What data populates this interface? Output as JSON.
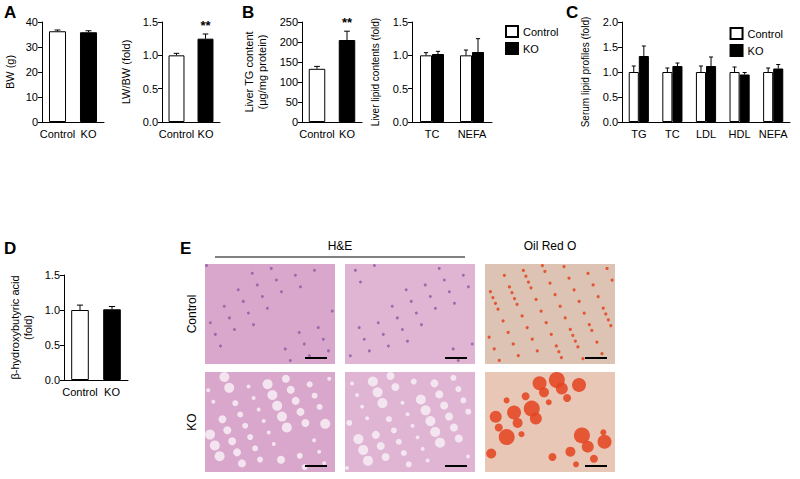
{
  "chart_data": [
    {
      "panel_label": "A",
      "type": "bar",
      "ylabel": "BW (g)",
      "categories": [
        "Control",
        "KO"
      ],
      "values": [
        36.3,
        35.9
      ],
      "errors": [
        0.5,
        0.6
      ],
      "colors": [
        "#ffffff",
        "#000000"
      ],
      "ylim": [
        0,
        40
      ],
      "yticks": [
        0,
        10,
        20,
        30,
        40
      ],
      "grid": false
    },
    {
      "type": "bar",
      "ylabel": "LW/BW (fold)",
      "categories": [
        "Control",
        "KO"
      ],
      "values": [
        1.0,
        1.25
      ],
      "errors": [
        0.03,
        0.07
      ],
      "colors": [
        "#ffffff",
        "#000000"
      ],
      "annotations": [
        {
          "category": "KO",
          "text": "**"
        }
      ],
      "ylim": [
        0,
        1.5
      ],
      "yticks": [
        {
          "value": 0,
          "label": "0.0"
        },
        0.5,
        {
          "value": 1,
          "label": "1.0"
        },
        1.5
      ],
      "grid": false
    },
    {
      "panel_label": "B",
      "type": "bar",
      "ylabel": "Liver TG content\n(μg/mg protein)",
      "categories": [
        "Control",
        "KO"
      ],
      "values": [
        133,
        205
      ],
      "errors": [
        6,
        22
      ],
      "colors": [
        "#ffffff",
        "#000000"
      ],
      "annotations": [
        {
          "category": "KO",
          "text": "**"
        }
      ],
      "ylim": [
        0,
        250
      ],
      "yticks": [
        0,
        50,
        100,
        150,
        200,
        250
      ],
      "grid": false
    },
    {
      "type": "bar",
      "ylabel": "Liver lipid contents (fold)",
      "categories": [
        "TC",
        "NEFA"
      ],
      "series": [
        {
          "name": "Control",
          "color": "#ffffff",
          "values": [
            1.0,
            1.0
          ],
          "errors": [
            0.04,
            0.08
          ]
        },
        {
          "name": "KO",
          "color": "#000000",
          "values": [
            1.02,
            1.05
          ],
          "errors": [
            0.04,
            0.2
          ]
        }
      ],
      "ylim": [
        0,
        1.5
      ],
      "yticks": [
        {
          "value": 0,
          "label": "0.0"
        },
        0.5,
        {
          "value": 1,
          "label": "1.0"
        },
        1.5
      ],
      "legend": "upper right",
      "grid": false
    },
    {
      "panel_label": "C",
      "type": "bar",
      "ylabel": "Serum lipid profiles (fold)",
      "categories": [
        "TG",
        "TC",
        "LDL",
        "HDL",
        "NEFA"
      ],
      "series": [
        {
          "name": "Control",
          "color": "#ffffff",
          "values": [
            1.0,
            1.0,
            1.0,
            1.0,
            1.0
          ],
          "errors": [
            0.12,
            0.08,
            0.12,
            0.1,
            0.08
          ]
        },
        {
          "name": "KO",
          "color": "#000000",
          "values": [
            1.32,
            1.12,
            1.12,
            0.95,
            1.07
          ],
          "errors": [
            0.2,
            0.06,
            0.18,
            0.04,
            0.08
          ]
        }
      ],
      "ylim": [
        0,
        2
      ],
      "yticks": [
        {
          "value": 0,
          "label": "0.0"
        },
        0.5,
        {
          "value": 1,
          "label": "1.0"
        },
        1.5,
        {
          "value": 2,
          "label": "2.0"
        }
      ],
      "legend": "upper right",
      "grid": false
    },
    {
      "panel_label": "D",
      "type": "bar",
      "ylabel": "β-hydroxybutyric acid\n(fold)",
      "categories": [
        "Control",
        "KO"
      ],
      "values": [
        1.0,
        1.01
      ],
      "errors": [
        0.07,
        0.04
      ],
      "colors": [
        "#ffffff",
        "#000000"
      ],
      "ylim": [
        0,
        1.5
      ],
      "yticks": [
        {
          "value": 0,
          "label": "0.0"
        },
        0.5,
        {
          "value": 1,
          "label": "1.0"
        },
        1.5
      ],
      "grid": false
    }
  ],
  "panel_e": {
    "panel_label": "E",
    "stains": [
      "H&E",
      "Oil Red O"
    ],
    "rows": [
      "Control",
      "KO"
    ]
  }
}
